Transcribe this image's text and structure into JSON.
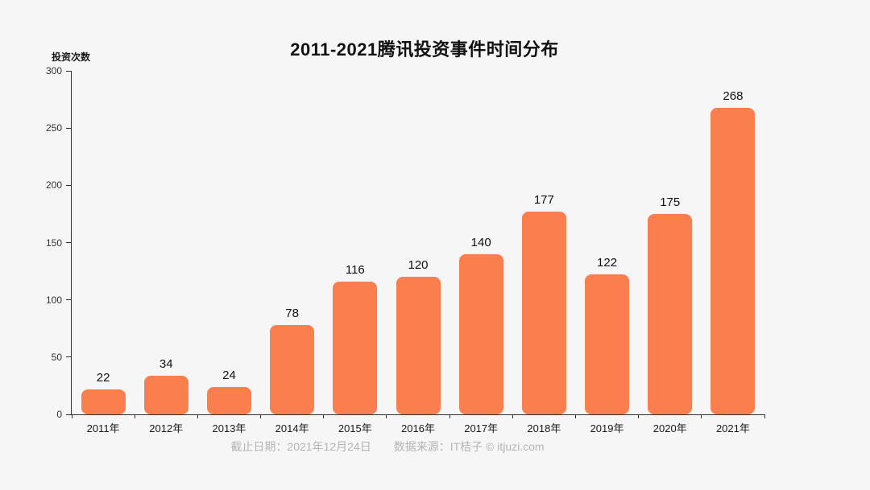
{
  "chart_data": {
    "type": "bar",
    "title": "2011-2021腾讯投资事件时间分布",
    "ylabel": "投资次数",
    "xlabel": "",
    "categories": [
      "2011年",
      "2012年",
      "2013年",
      "2014年",
      "2015年",
      "2016年",
      "2017年",
      "2018年",
      "2019年",
      "2020年",
      "2021年"
    ],
    "values": [
      22,
      34,
      24,
      78,
      116,
      120,
      140,
      177,
      122,
      175,
      268
    ],
    "ylim": [
      0,
      300
    ],
    "yticks": [
      0,
      50,
      100,
      150,
      200,
      250,
      300
    ],
    "grid": false,
    "legend_position": "none",
    "bar_color": "#fb7e4e",
    "background_color": "#f6f6f6"
  },
  "footer": {
    "date_text": "截止日期：2021年12月24日",
    "source_text": "数据来源：IT桔子 © itjuzi.com"
  }
}
